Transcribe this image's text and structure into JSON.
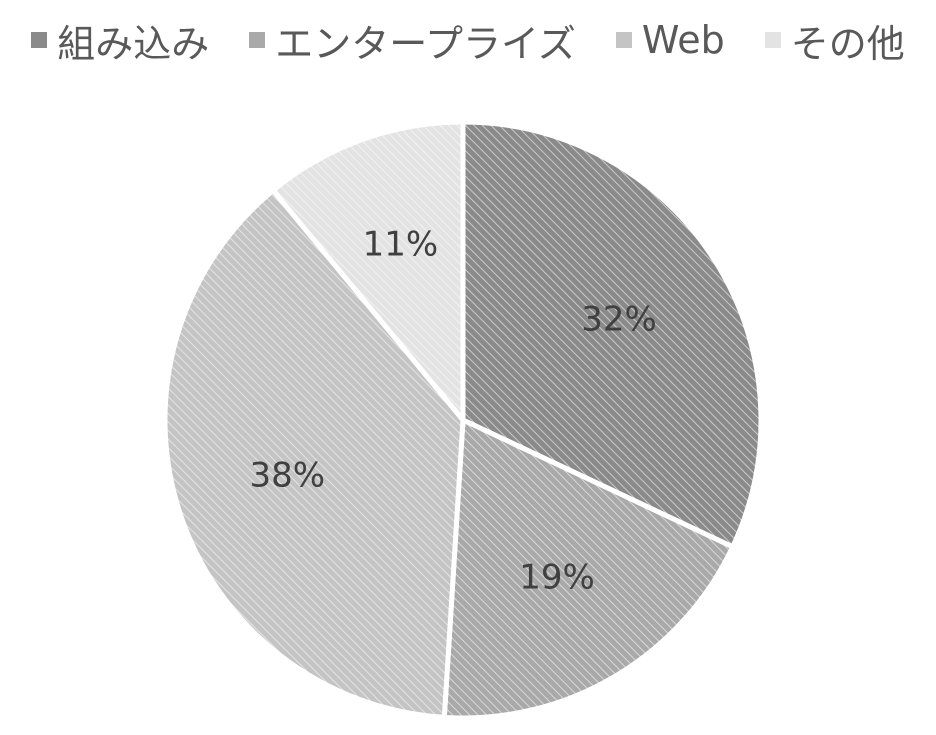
{
  "chart_data": {
    "type": "pie",
    "start_angle_deg": 0,
    "direction": "clockwise",
    "legend_position": "top",
    "label_format": "percent",
    "categories": [
      "組み込み",
      "エンタープライズ",
      "Web",
      "その他"
    ],
    "values": [
      32,
      19,
      38,
      11
    ],
    "data_labels": [
      "32%",
      "19%",
      "38%",
      "11%"
    ],
    "colors": [
      "#8a8a8a",
      "#a9a9a9",
      "#c4c4c4",
      "#e3e3e3"
    ],
    "slice_separator_color": "#ffffff",
    "label_color": "#404040"
  }
}
